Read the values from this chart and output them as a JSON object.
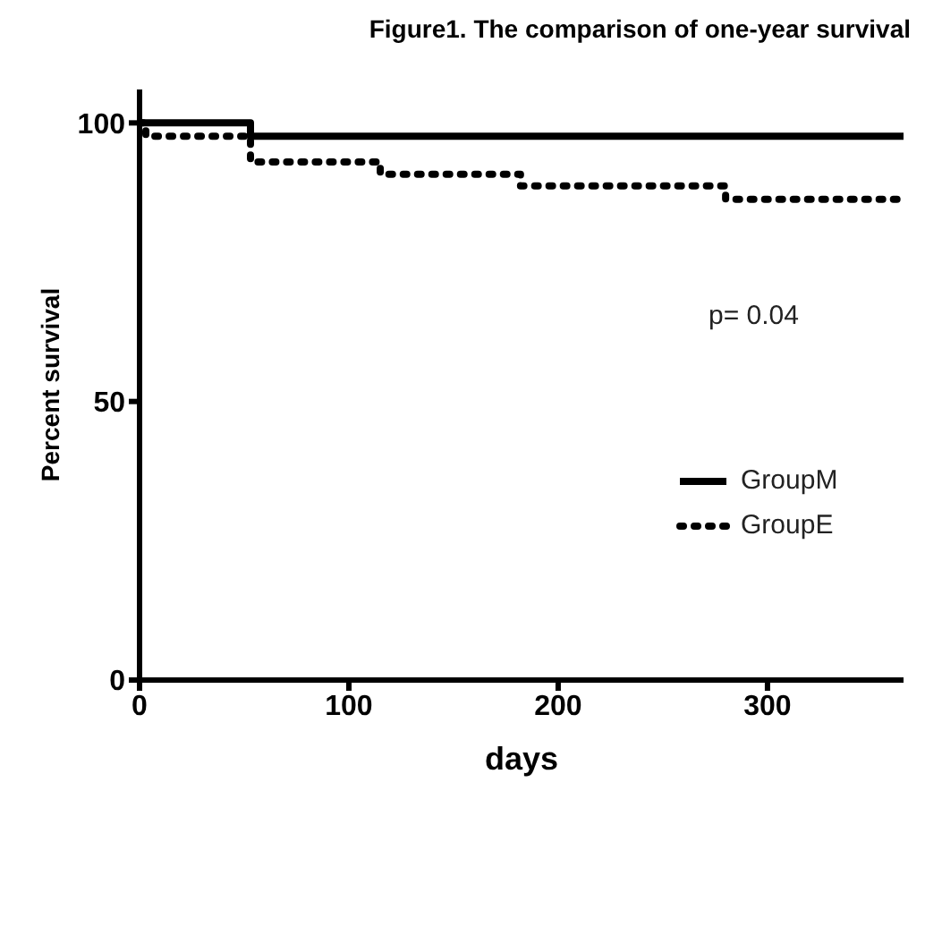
{
  "chart_data": {
    "type": "step",
    "title": "Figure1. The comparison of one-year survival",
    "xlabel": "days",
    "ylabel": "Percent survival",
    "xlim": [
      0,
      365
    ],
    "xticks": [
      0,
      100,
      200,
      300
    ],
    "ylim": [
      0,
      106
    ],
    "yticks": [
      0,
      50,
      100
    ],
    "series": [
      {
        "name": "GroupM",
        "color": "#000000",
        "line_style": "solid",
        "x": [
          0,
          53,
          365
        ],
        "values": [
          100,
          97.6,
          97.6
        ]
      },
      {
        "name": "GroupE",
        "color": "#000000",
        "line_style": "dotted",
        "x": [
          0,
          3,
          53,
          115,
          182,
          280,
          365
        ],
        "values": [
          100,
          97.6,
          93,
          90.8,
          88.7,
          86.3,
          86.3
        ]
      }
    ],
    "annotations": [
      "p= 0.04"
    ],
    "legend": "right",
    "grid": false,
    "marker": "none"
  }
}
